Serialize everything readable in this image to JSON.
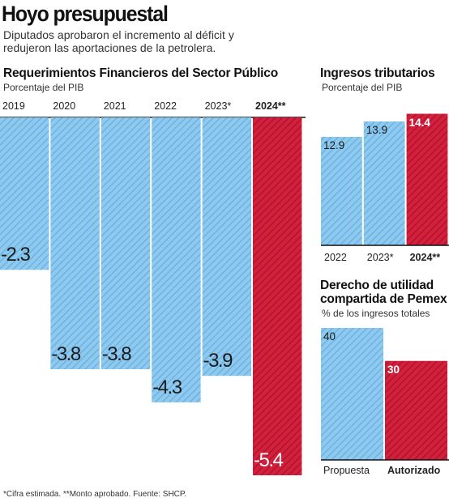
{
  "header": {
    "title": "Hoyo presupuestal",
    "subtitle": "Diputados aprobaron el incremento al déficit y redujeron las aportaciones de la petrolera."
  },
  "colors": {
    "bar": "#8ecaf0",
    "bar_stripe": "#6fb3e0",
    "highlight": "#d3203c",
    "highlight_stripe": "#b0142e",
    "baseline": "#111111"
  },
  "chart_data": [
    {
      "type": "bar",
      "title": "Requerimientos Financieros del Sector Público",
      "subtitle": "Porcentaje del PIB",
      "categories": [
        "2019",
        "2020",
        "2021",
        "2022",
        "2023*",
        "2024**"
      ],
      "values": [
        -2.3,
        -3.8,
        -3.8,
        -4.3,
        -3.9,
        -5.4
      ],
      "value_labels": [
        "-2.3",
        "-3.8",
        "-3.8",
        "-4.3",
        "-3.9",
        "-5.4"
      ],
      "highlight_index": 5,
      "ylim": [
        -5.4,
        0
      ]
    },
    {
      "type": "bar",
      "title": "Ingresos tributarios",
      "subtitle": "Porcentaje del PIB",
      "categories": [
        "2022",
        "2023*",
        "2024**"
      ],
      "values": [
        12.9,
        13.9,
        14.4
      ],
      "value_labels": [
        "12.9",
        "13.9",
        "14.4"
      ],
      "highlight_index": 2
    },
    {
      "type": "bar",
      "title": "Derecho de utilidad compartida de Pemex",
      "subtitle": "% de los ingresos totales",
      "categories": [
        "Propuesta",
        "Autorizado"
      ],
      "values": [
        40,
        30
      ],
      "value_labels": [
        "40",
        "30"
      ],
      "highlight_index": 1,
      "ylim": [
        0,
        40
      ]
    }
  ],
  "footnote": "*Cifra estimada. **Monto aprobado. Fuente: SHCP."
}
